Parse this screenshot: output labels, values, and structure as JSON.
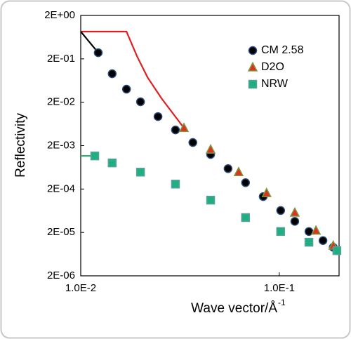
{
  "chart_data": {
    "type": "scatter",
    "xlabel": "Wave vector/Å",
    "xlabel_sup": "-1",
    "ylabel": "Reflectivity",
    "log_x": true,
    "log_y": true,
    "xlim": [
      0.01,
      0.2
    ],
    "ylim": [
      2e-06,
      2
    ],
    "xticks": [
      {
        "value": 0.01,
        "label": "1.0E-2"
      },
      {
        "value": 0.1,
        "label": "1.0E-1"
      }
    ],
    "yticks": [
      {
        "value": 2,
        "label": "2E+00"
      },
      {
        "value": 0.2,
        "label": "2E-01"
      },
      {
        "value": 0.02,
        "label": "2E-02"
      },
      {
        "value": 0.002,
        "label": "2E-03"
      },
      {
        "value": 0.0002,
        "label": "2E-04"
      },
      {
        "value": 2e-05,
        "label": "2E-05"
      },
      {
        "value": 2e-06,
        "label": "2E-06"
      }
    ],
    "legend": "upper right",
    "series": [
      {
        "color": "#e02020",
        "line": true,
        "x": [
          0.01,
          0.017,
          0.0192,
          0.0217,
          0.0255,
          0.0331
        ],
        "values": [
          0.85,
          0.85,
          0.23,
          0.075,
          0.0247,
          0.0051
        ]
      },
      {
        "color": "#000000",
        "line": true,
        "x": [
          0.01,
          0.01225
        ],
        "values": [
          0.85,
          0.277
        ]
      },
      {
        "color": "#30b070",
        "line": true,
        "x": [
          0.01,
          0.01177
        ],
        "values": [
          0.00116,
          0.00116
        ]
      },
      {
        "name": "CM 2.58",
        "color": "#000000",
        "edge": "#2a4a7a",
        "marker": "circle",
        "x": [
          0.01225,
          0.0144,
          0.017,
          0.02,
          0.0245,
          0.03,
          0.0367,
          0.0451,
          0.0552,
          0.0676,
          0.083,
          0.1016,
          0.1197,
          0.141,
          0.166,
          0.187
        ],
        "values": [
          0.277,
          0.0908,
          0.04,
          0.0205,
          0.00935,
          0.0046,
          0.00236,
          0.00125,
          0.00059,
          0.00028,
          0.000134,
          6.4e-05,
          3.6e-05,
          2.1e-05,
          1.3e-05,
          9.1e-06
        ]
      },
      {
        "name": "D2O",
        "color": "#e03020",
        "edge": "#7a9a40",
        "marker": "triangle",
        "x": [
          0.0331,
          0.0451,
          0.0624,
          0.0863,
          0.1197,
          0.153,
          0.187
        ],
        "values": [
          0.0051,
          0.00162,
          0.00049,
          0.000161,
          5.7e-05,
          2.2e-05,
          9.9e-06
        ]
      },
      {
        "name": "NRW",
        "color": "#20b080",
        "edge": "#5aa0a0",
        "marker": "square",
        "x": [
          0.01177,
          0.0144,
          0.02,
          0.03,
          0.0451,
          0.0676,
          0.1016,
          0.141,
          0.195
        ],
        "values": [
          0.00116,
          0.0008,
          0.00049,
          0.00026,
          0.000111,
          4.4e-05,
          2.1e-05,
          1.19e-05,
          7.6e-06
        ]
      }
    ]
  }
}
